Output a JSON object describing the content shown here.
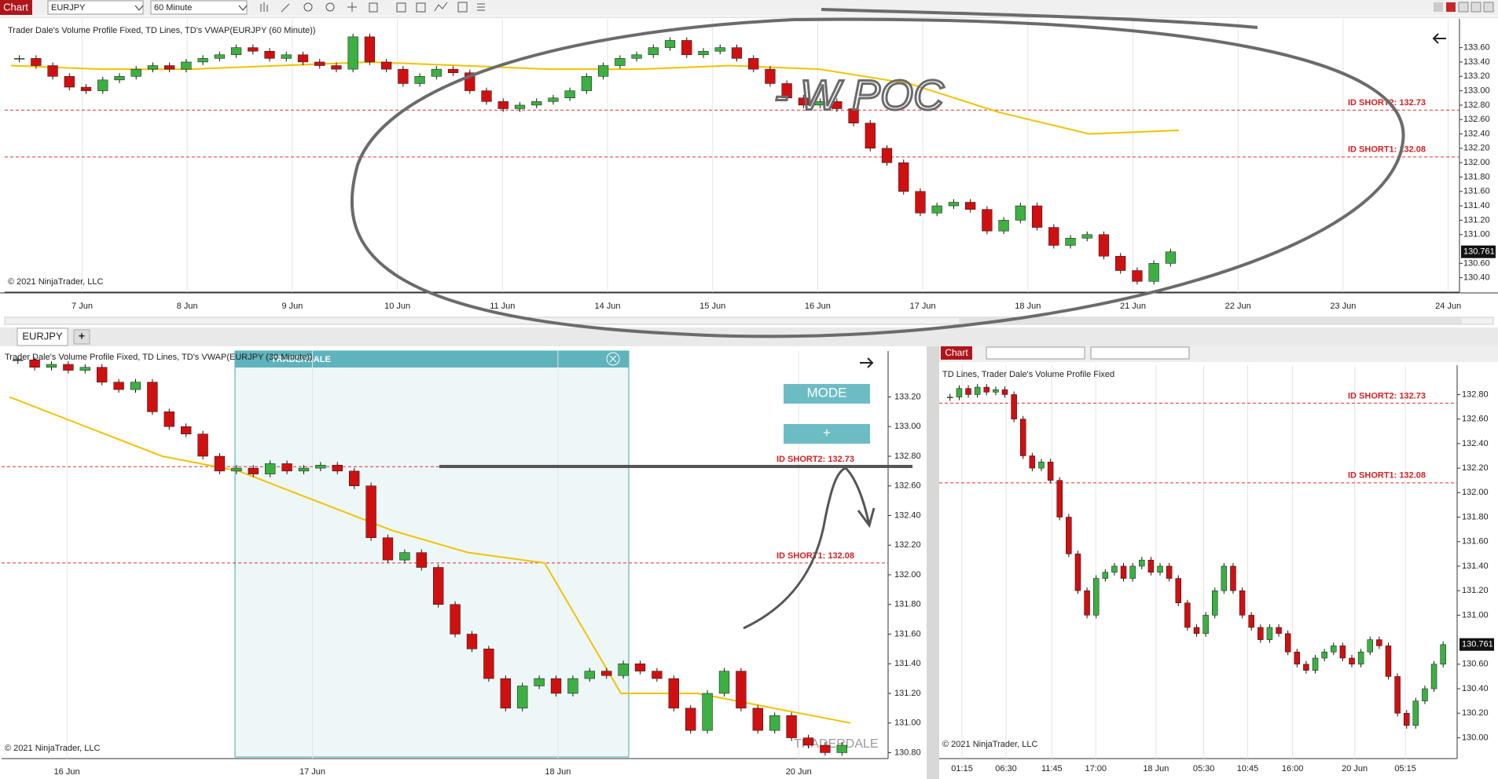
{
  "toolbar": {
    "menu": "Chart",
    "instrument": "EURJPY",
    "interval": "60 Minute"
  },
  "top_chart": {
    "title": "Trader Dale's Volume Profile Fixed, TD Lines, TD's VWAP(EURJPY (60 Minute))",
    "copyright": "© 2021 NinjaTrader, LLC",
    "annotation": "- W POC",
    "ylim": [
      130.2,
      134.0
    ],
    "yticks": [
      {
        "value": 133.6,
        "label": "133.60"
      },
      {
        "value": 133.4,
        "label": "133.40"
      },
      {
        "value": 133.2,
        "label": "133.20"
      },
      {
        "value": 133.0,
        "label": "133.00"
      },
      {
        "value": 132.8,
        "label": "132.80"
      },
      {
        "value": 132.6,
        "label": "132.60"
      },
      {
        "value": 132.4,
        "label": "132.40"
      },
      {
        "value": 132.2,
        "label": "132.20"
      },
      {
        "value": 132.0,
        "label": "132.00"
      },
      {
        "value": 131.8,
        "label": "131.80"
      },
      {
        "value": 131.6,
        "label": "131.60"
      },
      {
        "value": 131.4,
        "label": "131.40"
      },
      {
        "value": 131.2,
        "label": "131.20"
      },
      {
        "value": 131.0,
        "label": "131.00"
      },
      {
        "value": 130.6,
        "label": "130.60"
      },
      {
        "value": 130.4,
        "label": "130.40"
      }
    ],
    "categories": [
      "7 Jun",
      "8 Jun",
      "9 Jun",
      "10 Jun",
      "11 Jun",
      "14 Jun",
      "15 Jun",
      "16 Jun",
      "17 Jun",
      "18 Jun",
      "21 Jun",
      "22 Jun",
      "23 Jun",
      "24 Jun"
    ],
    "levels": [
      {
        "value": 132.73,
        "label": "ID SHORT2: 132.73"
      },
      {
        "value": 132.08,
        "label": "ID SHORT1: 132.08"
      }
    ],
    "last_price": {
      "value": 130.761,
      "label": "130.761"
    },
    "closes": [
      133.45,
      133.35,
      133.2,
      133.05,
      133.0,
      133.15,
      133.2,
      133.3,
      133.35,
      133.3,
      133.4,
      133.45,
      133.5,
      133.6,
      133.55,
      133.45,
      133.5,
      133.4,
      133.35,
      133.3,
      133.75,
      133.4,
      133.3,
      133.1,
      133.2,
      133.3,
      133.25,
      133.0,
      132.85,
      132.75,
      132.8,
      132.85,
      132.9,
      133.0,
      133.2,
      133.35,
      133.45,
      133.5,
      133.6,
      133.7,
      133.5,
      133.55,
      133.6,
      133.45,
      133.3,
      133.1,
      132.9,
      132.8,
      132.85,
      132.75,
      132.55,
      132.2,
      132.0,
      131.6,
      131.3,
      131.4,
      131.45,
      131.35,
      131.05,
      131.2,
      131.4,
      131.1,
      130.85,
      130.95,
      131.0,
      130.7,
      130.5,
      130.35,
      130.6,
      130.76
    ],
    "vwap": [
      133.35,
      133.3,
      133.3,
      133.35,
      133.4,
      133.35,
      133.3,
      133.3,
      133.35,
      133.3,
      133.1,
      132.7,
      132.4,
      132.45
    ]
  },
  "tab": {
    "label": "EURJPY",
    "add": "+"
  },
  "bottom_left_chart": {
    "title": "Trader Dale's Volume Profile Fixed, TD Lines, TD's VWAP(EURJPY (30 Minute))",
    "copyright": "© 2021 NinjaTrader, LLC",
    "buttons": [
      "MODE",
      "+"
    ],
    "watermark": "TRADERDALE",
    "ylim": [
      130.76,
      133.51
    ],
    "yticks": [
      {
        "value": 133.2,
        "label": "133.20"
      },
      {
        "value": 133.0,
        "label": "133.00"
      },
      {
        "value": 132.8,
        "label": "132.80"
      },
      {
        "value": 132.6,
        "label": "132.60"
      },
      {
        "value": 132.4,
        "label": "132.40"
      },
      {
        "value": 132.2,
        "label": "132.20"
      },
      {
        "value": 132.0,
        "label": "132.00"
      },
      {
        "value": 131.8,
        "label": "131.80"
      },
      {
        "value": 131.6,
        "label": "131.60"
      },
      {
        "value": 131.4,
        "label": "131.40"
      },
      {
        "value": 131.2,
        "label": "131.20"
      },
      {
        "value": 131.0,
        "label": "131.00"
      },
      {
        "value": 130.8,
        "label": "130.80"
      }
    ],
    "categories": [
      "16 Jun",
      "17 Jun",
      "18 Jun",
      "20 Jun"
    ],
    "levels": [
      {
        "value": 132.73,
        "label": "ID SHORT2: 132.73"
      },
      {
        "value": 132.08,
        "label": "ID SHORT1: 132.08"
      }
    ],
    "closes": [
      133.45,
      133.4,
      133.42,
      133.38,
      133.4,
      133.3,
      133.25,
      133.3,
      133.1,
      133.0,
      132.95,
      132.8,
      132.7,
      132.72,
      132.68,
      132.75,
      132.7,
      132.72,
      132.74,
      132.7,
      132.6,
      132.25,
      132.1,
      132.15,
      132.05,
      131.8,
      131.6,
      131.5,
      131.3,
      131.1,
      131.25,
      131.3,
      131.2,
      131.3,
      131.35,
      131.32,
      131.4,
      131.35,
      131.3,
      131.1,
      130.95,
      131.2,
      131.35,
      131.1,
      130.95,
      131.05,
      130.9,
      130.85,
      130.8,
      130.85
    ],
    "vwap": [
      133.2,
      133.0,
      132.8,
      132.7,
      132.5,
      132.3,
      132.15,
      132.08,
      131.2,
      131.2,
      131.1,
      131.0
    ]
  },
  "right_chart": {
    "menu": "Chart",
    "title": "TD Lines, Trader Dale's Volume Profile Fixed",
    "copyright": "© 2021 NinjaTrader, LLC",
    "ylim": [
      129.83,
      133.04
    ],
    "yticks": [
      {
        "value": 132.8,
        "label": "132.80"
      },
      {
        "value": 132.6,
        "label": "132.60"
      },
      {
        "value": 132.4,
        "label": "132.40"
      },
      {
        "value": 132.2,
        "label": "132.20"
      },
      {
        "value": 132.0,
        "label": "132.00"
      },
      {
        "value": 131.8,
        "label": "131.80"
      },
      {
        "value": 131.6,
        "label": "131.60"
      },
      {
        "value": 131.4,
        "label": "131.40"
      },
      {
        "value": 131.2,
        "label": "131.20"
      },
      {
        "value": 131.0,
        "label": "131.00"
      },
      {
        "value": 130.6,
        "label": "130.60"
      },
      {
        "value": 130.4,
        "label": "130.40"
      },
      {
        "value": 130.2,
        "label": "130.20"
      },
      {
        "value": 130.0,
        "label": "130.00"
      }
    ],
    "categories": [
      "01:15",
      "06:30",
      "11:45",
      "17:00",
      "18 Jun",
      "05:30",
      "10:45",
      "16:00",
      "20 Jun",
      "05:15"
    ],
    "levels": [
      {
        "value": 132.73,
        "label": "ID SHORT2: 132.73"
      },
      {
        "value": 132.08,
        "label": "ID SHORT1: 132.08"
      }
    ],
    "last_price": {
      "value": 130.761,
      "label": "130.761"
    },
    "closes": [
      132.78,
      132.85,
      132.8,
      132.86,
      132.82,
      132.84,
      132.8,
      132.6,
      132.3,
      132.2,
      132.25,
      132.1,
      131.8,
      131.5,
      131.2,
      131.0,
      131.3,
      131.35,
      131.4,
      131.3,
      131.4,
      131.45,
      131.35,
      131.4,
      131.3,
      131.1,
      130.9,
      130.85,
      131.0,
      131.2,
      131.4,
      131.2,
      131.0,
      130.9,
      130.8,
      130.9,
      130.85,
      130.7,
      130.6,
      130.55,
      130.65,
      130.7,
      130.75,
      130.65,
      130.6,
      130.7,
      130.8,
      130.75,
      130.5,
      130.2,
      130.1,
      130.3,
      130.4,
      130.6,
      130.76
    ]
  }
}
